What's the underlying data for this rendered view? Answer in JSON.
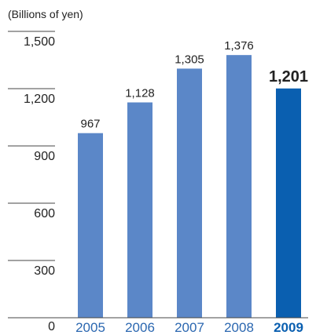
{
  "chart_data": {
    "type": "bar",
    "unit_label": "(Billions of yen)",
    "xlabel": "",
    "ylabel": "",
    "categories": [
      "2005",
      "2006",
      "2007",
      "2008",
      "2009"
    ],
    "values": [
      967,
      1128,
      1305,
      1376,
      1201
    ],
    "value_labels": [
      "967",
      "1,128",
      "1,305",
      "1,376",
      "1,201"
    ],
    "highlight_index": 4,
    "ylim": [
      0,
      1500
    ],
    "yticks": [
      0,
      300,
      600,
      900,
      1200,
      1500
    ],
    "ytick_labels": [
      "0",
      "300",
      "600",
      "900",
      "1,200",
      "1,500"
    ],
    "grid": "short ticks at left",
    "legend": "none",
    "colors": {
      "bar": "#5b87c8",
      "bar_highlight": "#0a5fb0",
      "category_text": "#2b67b0",
      "category_text_highlight": "#0a5fb0",
      "highlight_value_text": "#1a6fc0",
      "axis": "#444444"
    }
  }
}
